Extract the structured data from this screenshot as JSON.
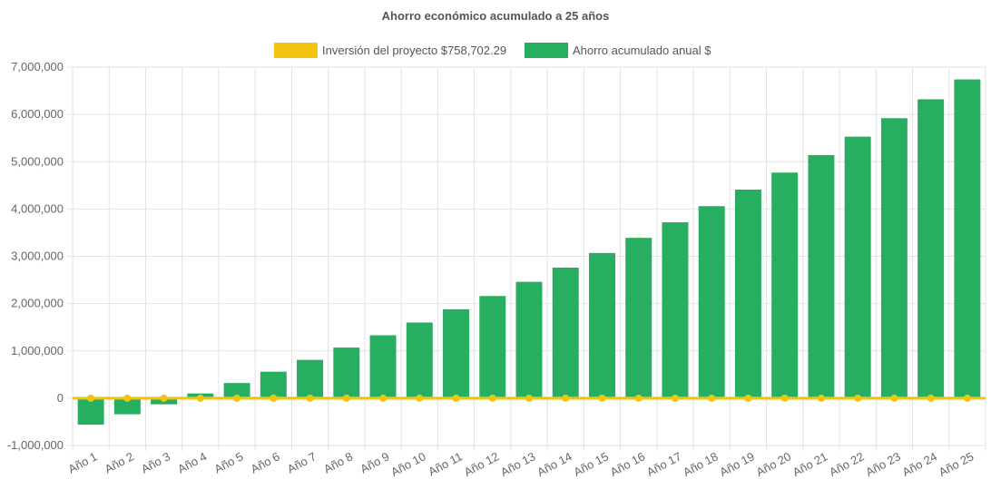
{
  "chart_data": {
    "type": "bar",
    "title": "Ahorro económico acumulado a 25 años",
    "legend_position": "top",
    "grid": true,
    "ylim": [
      -1000000,
      7000000
    ],
    "y_ticks": [
      "7,000,000",
      "6,000,000",
      "5,000,000",
      "4,000,000",
      "3,000,000",
      "2,000,000",
      "1,000,000",
      "0",
      "-1,000,000"
    ],
    "y_tick_values": [
      7000000,
      6000000,
      5000000,
      4000000,
      3000000,
      2000000,
      1000000,
      0,
      -1000000
    ],
    "categories": [
      "Año 1",
      "Año 2",
      "Año 3",
      "Año 4",
      "Año 5",
      "Año 6",
      "Año 7",
      "Año 8",
      "Año 9",
      "Año 10",
      "Año 11",
      "Año 12",
      "Año 13",
      "Año 14",
      "Año 15",
      "Año 16",
      "Año 17",
      "Año 18",
      "Año 19",
      "Año 20",
      "Año 21",
      "Año 22",
      "Año 23",
      "Año 24",
      "Año 25"
    ],
    "series": [
      {
        "name": "Inversión del proyecto $758,702.29",
        "type": "line",
        "color": "#f2c40f",
        "values": [
          0,
          0,
          0,
          0,
          0,
          0,
          0,
          0,
          0,
          0,
          0,
          0,
          0,
          0,
          0,
          0,
          0,
          0,
          0,
          0,
          0,
          0,
          0,
          0,
          0
        ]
      },
      {
        "name": "Ahorro acumulado anual $",
        "type": "bar",
        "color": "#27ae60",
        "values": [
          -560000,
          -340000,
          -130000,
          100000,
          320000,
          560000,
          810000,
          1070000,
          1330000,
          1600000,
          1880000,
          2160000,
          2460000,
          2760000,
          3070000,
          3390000,
          3720000,
          4060000,
          4410000,
          4770000,
          5140000,
          5530000,
          5920000,
          6320000,
          6740000
        ]
      }
    ]
  }
}
